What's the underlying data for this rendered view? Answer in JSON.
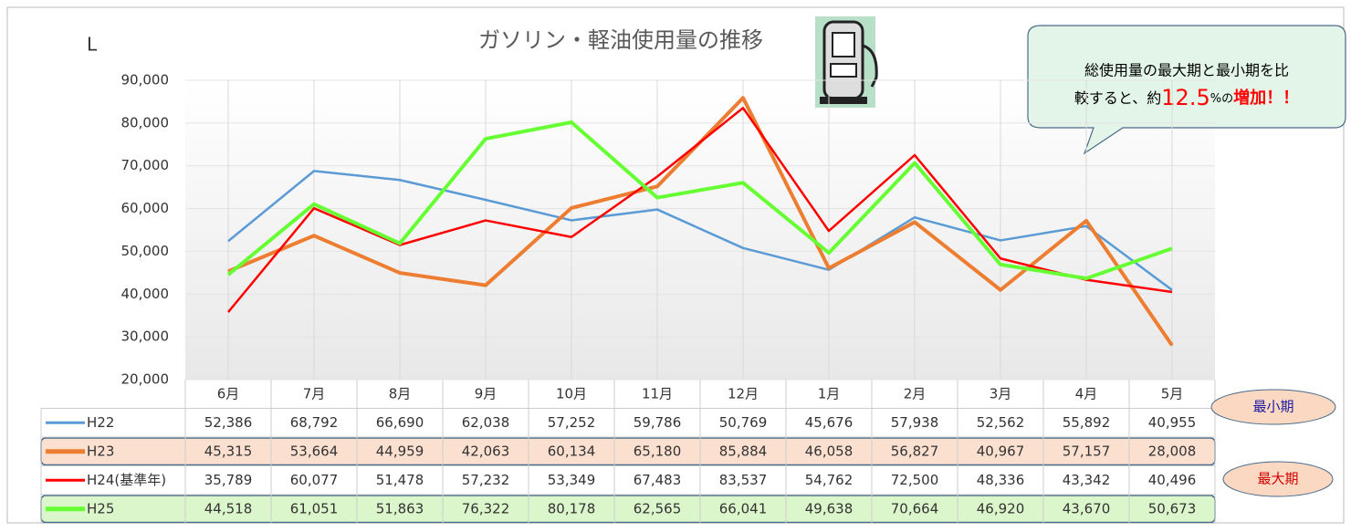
{
  "chart_data": {
    "type": "line",
    "title": "ガソリン・軽油使用量の推移",
    "y_label": "L",
    "categories": [
      "6月",
      "7月",
      "8月",
      "9月",
      "10月",
      "11月",
      "12月",
      "1月",
      "2月",
      "3月",
      "4月",
      "5月"
    ],
    "ylim": [
      20000,
      90000
    ],
    "yticks": [
      {
        "value": 20000,
        "label": "20,000"
      },
      {
        "value": 30000,
        "label": "30,000"
      },
      {
        "value": 40000,
        "label": "40,000"
      },
      {
        "value": 50000,
        "label": "50,000"
      },
      {
        "value": 60000,
        "label": "60,000"
      },
      {
        "value": 70000,
        "label": "70,000"
      },
      {
        "value": 80000,
        "label": "80,000"
      },
      {
        "value": 90000,
        "label": "90,000"
      }
    ],
    "grid": true,
    "series": [
      {
        "name": "H22",
        "color": "#5b9bd5",
        "values": [
          52386,
          68792,
          66690,
          62038,
          57252,
          59786,
          50769,
          45676,
          57938,
          52562,
          55892,
          40955
        ],
        "value_labels": [
          "52,386",
          "68,792",
          "66,690",
          "62,038",
          "57,252",
          "59,786",
          "50,769",
          "45,676",
          "57,938",
          "52,562",
          "55,892",
          "40,955"
        ]
      },
      {
        "name": "H23",
        "color": "#ed7d31",
        "values": [
          45315,
          53664,
          44959,
          42063,
          60134,
          65180,
          85884,
          46058,
          56827,
          40967,
          57157,
          28008
        ],
        "value_labels": [
          "45,315",
          "53,664",
          "44,959",
          "42,063",
          "60,134",
          "65,180",
          "85,884",
          "46,058",
          "56,827",
          "40,967",
          "57,157",
          "28,008"
        ]
      },
      {
        "name": "H24(基準年)",
        "color": "#ff0000",
        "values": [
          35789,
          60077,
          51478,
          57232,
          53349,
          67483,
          83537,
          54762,
          72500,
          48336,
          43342,
          40496
        ],
        "value_labels": [
          "35,789",
          "60,077",
          "51,478",
          "57,232",
          "53,349",
          "67,483",
          "83,537",
          "54,762",
          "72,500",
          "48,336",
          "43,342",
          "40,496"
        ]
      },
      {
        "name": "H25",
        "color": "#66ff33",
        "values": [
          44518,
          61051,
          51863,
          76322,
          80178,
          62565,
          66041,
          49638,
          70664,
          46920,
          43670,
          50673
        ],
        "value_labels": [
          "44,518",
          "61,051",
          "51,863",
          "76,322",
          "80,178",
          "62,565",
          "66,041",
          "49,638",
          "70,664",
          "46,920",
          "43,670",
          "50,673"
        ]
      }
    ],
    "annotations": {
      "callout": [
        "総使用量の最大期と最小期を比",
        "較すると、約",
        "12.5",
        "%の",
        "増加！！"
      ],
      "min_label": "最小期",
      "max_label": "最大期"
    }
  }
}
